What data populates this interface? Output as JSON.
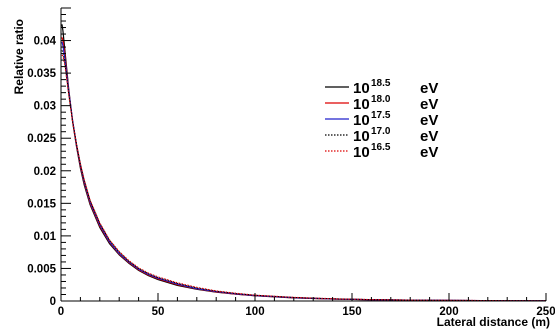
{
  "chart_data": {
    "type": "line",
    "xlabel": "Lateral distance (m)",
    "ylabel": "Relative ratio",
    "xlim": [
      0,
      250
    ],
    "ylim": [
      0,
      0.045
    ],
    "x_ticks": [
      "0",
      "50",
      "100",
      "150",
      "200",
      "250"
    ],
    "y_ticks": [
      "0",
      "0.005",
      "0.01",
      "0.015",
      "0.02",
      "0.025",
      "0.03",
      "0.035",
      "0.04"
    ],
    "grid": false,
    "legend_position": "top-right",
    "x": [
      0.5,
      1,
      2,
      4,
      6,
      8,
      10,
      12,
      15,
      20,
      25,
      30,
      35,
      40,
      45,
      50,
      60,
      70,
      80,
      90,
      100,
      120,
      140,
      160,
      180,
      200,
      225,
      250
    ],
    "series": [
      {
        "name_base": "10",
        "name_exp": "18.5",
        "name_unit": "eV",
        "color": "#000000",
        "style": "solid",
        "values": [
          0.0425,
          0.0415,
          0.0385,
          0.0325,
          0.0275,
          0.0237,
          0.0204,
          0.0178,
          0.0148,
          0.0113,
          0.0088,
          0.0071,
          0.0058,
          0.0047,
          0.0039,
          0.0033,
          0.0024,
          0.0018,
          0.00135,
          0.00105,
          0.0008,
          0.00048,
          0.0003,
          0.00019,
          0.00012,
          8e-05,
          5e-05,
          3e-05
        ]
      },
      {
        "name_base": "10",
        "name_exp": "18.0",
        "name_unit": "eV",
        "color": "#dd0000",
        "style": "solid",
        "values": [
          0.0405,
          0.04,
          0.0378,
          0.0322,
          0.0276,
          0.0239,
          0.0207,
          0.0181,
          0.015,
          0.0115,
          0.009,
          0.0072,
          0.0059,
          0.0048,
          0.004,
          0.0034,
          0.0025,
          0.00185,
          0.0014,
          0.00108,
          0.00082,
          0.0005,
          0.00031,
          0.0002,
          0.00013,
          9e-05,
          5e-05,
          3e-05
        ]
      },
      {
        "name_base": "10",
        "name_exp": "17.5",
        "name_unit": "eV",
        "color": "#2222cc",
        "style": "solid",
        "values": [
          0.0398,
          0.0392,
          0.0372,
          0.0321,
          0.0277,
          0.024,
          0.0209,
          0.0183,
          0.0152,
          0.0117,
          0.0091,
          0.0073,
          0.006,
          0.0049,
          0.0041,
          0.0035,
          0.0026,
          0.0019,
          0.00145,
          0.0011,
          0.00085,
          0.00052,
          0.00032,
          0.0002,
          0.00013,
          9e-05,
          5e-05,
          3e-05
        ]
      },
      {
        "name_base": "10",
        "name_exp": "17.0",
        "name_unit": "eV",
        "color": "#000000",
        "style": "dotted",
        "values": [
          0.0385,
          0.0382,
          0.0366,
          0.0318,
          0.0276,
          0.0241,
          0.021,
          0.0185,
          0.0154,
          0.0119,
          0.0093,
          0.0075,
          0.0061,
          0.005,
          0.0042,
          0.0036,
          0.0027,
          0.002,
          0.0015,
          0.00115,
          0.00088,
          0.00054,
          0.00034,
          0.00021,
          0.00014,
          9e-05,
          6e-05,
          3e-05
        ]
      },
      {
        "name_base": "10",
        "name_exp": "16.5",
        "name_unit": "eV",
        "color": "#dd0000",
        "style": "dotted",
        "values": [
          0.0378,
          0.0376,
          0.0362,
          0.0316,
          0.0275,
          0.0241,
          0.0211,
          0.0186,
          0.0155,
          0.012,
          0.0094,
          0.0076,
          0.0062,
          0.0051,
          0.0043,
          0.0037,
          0.0028,
          0.0021,
          0.00155,
          0.0012,
          0.0009,
          0.00056,
          0.00035,
          0.00022,
          0.00014,
          0.0001,
          6e-05,
          3e-05
        ]
      }
    ]
  }
}
